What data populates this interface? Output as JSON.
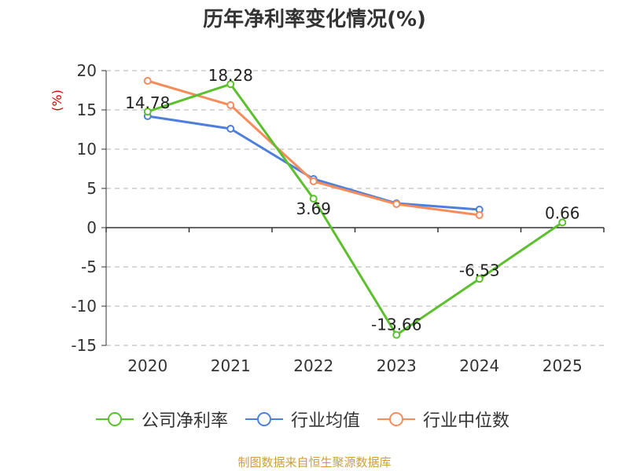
{
  "chart_data": {
    "type": "line",
    "title": "历年净利率变化情况(%)",
    "ylabel": "(%)",
    "xlabel": "",
    "categories": [
      "2020",
      "2021",
      "2022",
      "2023",
      "2024",
      "2025"
    ],
    "ylim": [
      -15,
      20
    ],
    "yticks": [
      20,
      15,
      10,
      5,
      0,
      -5,
      -10,
      -15
    ],
    "grid": true,
    "legend_position": "bottom",
    "series": [
      {
        "name": "公司净利率",
        "color": "#5cc02e",
        "values": [
          14.78,
          18.28,
          3.69,
          -13.66,
          -6.53,
          0.66
        ],
        "labels": [
          "14.78",
          "18.28",
          "3.69",
          "-13.66",
          "-6.53",
          "0.66"
        ]
      },
      {
        "name": "行业均值",
        "color": "#4f7fdc",
        "values": [
          14.2,
          12.6,
          6.2,
          3.1,
          2.3,
          null
        ]
      },
      {
        "name": "行业中位数",
        "color": "#f48c5c",
        "values": [
          18.7,
          15.6,
          5.9,
          3.0,
          1.6,
          null
        ]
      }
    ]
  },
  "legend": {
    "company": "公司净利率",
    "industry_avg": "行业均值",
    "industry_median": "行业中位数"
  },
  "source": "制图数据来自恒生聚源数据库"
}
